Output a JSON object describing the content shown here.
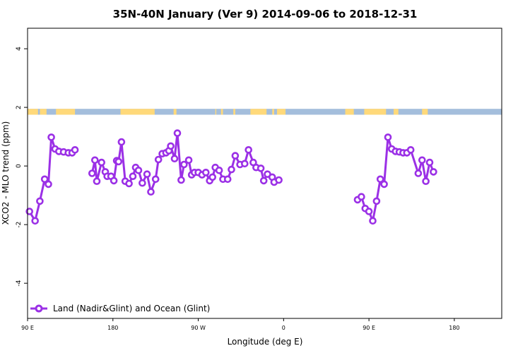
{
  "chart_data": {
    "type": "line",
    "title": "35N-40N January (Ver 9)   2014-09-06 to 2018-12-31",
    "xlabel": "Longitude (deg E)",
    "ylabel": "XCO2 - MLO trend (ppm)",
    "xlim": [
      90,
      590
    ],
    "ylim": [
      -5.2,
      4.7
    ],
    "x_ticks": [
      {
        "value": 90,
        "label": "90 E"
      },
      {
        "value": 180,
        "label": "180"
      },
      {
        "value": 270,
        "label": "90 W"
      },
      {
        "value": 360,
        "label": "0"
      },
      {
        "value": 450,
        "label": "90 E"
      },
      {
        "value": 540,
        "label": "180"
      }
    ],
    "y_ticks": [
      {
        "value": -4,
        "label": "-4"
      },
      {
        "value": -2,
        "label": "-2"
      },
      {
        "value": 0,
        "label": "0"
      },
      {
        "value": 2,
        "label": "2"
      },
      {
        "value": 4,
        "label": "4"
      }
    ],
    "grid": false,
    "legend": {
      "position": "bottom-left"
    },
    "colors": {
      "series": "#9b30e6",
      "land": "#ffd97a",
      "ocean": "#a4bedc"
    },
    "land_ocean_strip": {
      "y_range": [
        1.75,
        1.95
      ],
      "land_segments": [
        [
          90,
          101
        ],
        [
          103,
          110
        ],
        [
          120,
          140
        ],
        [
          188,
          224
        ],
        [
          244,
          247
        ],
        [
          288,
          289
        ],
        [
          294,
          296
        ],
        [
          307,
          309
        ],
        [
          325,
          342
        ],
        [
          348,
          350
        ],
        [
          353,
          362
        ],
        [
          425,
          434
        ],
        [
          445,
          468
        ],
        [
          476,
          481
        ],
        [
          506,
          512
        ]
      ]
    },
    "series": [
      {
        "name": "Land (Nadir&Glint) and Ocean (Glint)",
        "segments": [
          {
            "x": [
              92,
              98,
              103,
              108,
              112,
              115,
              119,
              123,
              128,
              133,
              137,
              140,
              144
            ],
            "y": [
              -1.55,
              -1.87,
              -1.2,
              -0.45,
              -0.62,
              0.98,
              0.58,
              0.5,
              0.48,
              0.45,
              0.45,
              0.55,
              null
            ]
          },
          {
            "x": [
              158,
              161,
              163,
              168,
              172,
              174,
              178,
              181,
              184,
              186,
              189,
              193,
              197,
              201,
              204,
              207,
              211,
              216,
              220,
              225,
              228,
              232,
              236,
              239,
              241,
              245,
              248,
              252,
              255,
              260,
              263,
              266,
              270,
              274,
              278,
              282,
              285,
              288,
              292,
              296,
              301,
              305,
              309,
              314,
              319,
              323,
              328,
              331,
              336,
              339,
              343,
              348,
              350,
              355,
              360,
              364,
              368,
              371,
              375,
              379,
              382,
              386
            ],
            "y": [
              -0.25,
              0.2,
              -0.52,
              0.12,
              -0.2,
              -0.35,
              -0.35,
              -0.5,
              0.18,
              0.15,
              0.82,
              -0.52,
              -0.6,
              -0.35,
              -0.05,
              -0.15,
              -0.58,
              -0.28,
              -0.88,
              -0.45,
              0.22,
              0.42,
              0.45,
              0.52,
              0.68,
              0.25,
              1.12,
              -0.48,
              0.05,
              0.2,
              -0.3,
              -0.22,
              -0.22,
              -0.3,
              -0.22,
              -0.5,
              -0.38,
              -0.05,
              -0.15,
              -0.45,
              -0.45,
              -0.12,
              0.35,
              0.05,
              0.08,
              0.55,
              0.12,
              -0.05,
              -0.08,
              -0.5,
              -0.28,
              -0.38,
              -0.55,
              -0.48,
              null,
              null,
              null,
              null,
              null,
              null,
              null,
              null
            ]
          },
          {
            "x": [
              438,
              442,
              446,
              450,
              454,
              458,
              462,
              466,
              470,
              474,
              478,
              482,
              486,
              490,
              494,
              498,
              502,
              506,
              510,
              514,
              518,
              522,
              526,
              530,
              534,
              538
            ],
            "y": [
              -1.15,
              -1.05,
              -1.45,
              -1.55,
              -1.87,
              -1.2,
              -0.45,
              -0.62,
              0.98,
              0.58,
              0.5,
              0.48,
              0.45,
              0.45,
              0.55,
              null,
              -0.25,
              0.2,
              -0.52,
              0.12,
              -0.2,
              null,
              null,
              null,
              null,
              null
            ]
          }
        ]
      }
    ]
  }
}
